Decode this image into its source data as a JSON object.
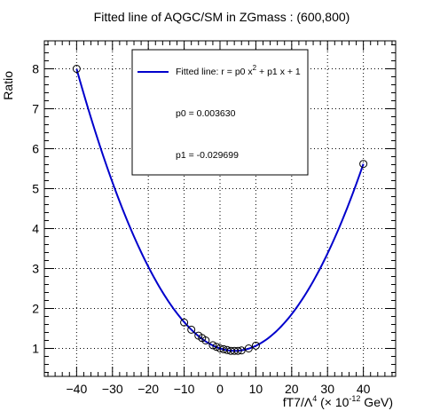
{
  "chart_data": {
    "type": "scatter",
    "title": "Fitted line of AQGC/SM in ZGmass : (600,800)",
    "xlabel": {
      "base": "fT7/Λ",
      "exp": "4",
      "mid": " (× 10",
      "mid_exp": "-12",
      "tail": " GeV)"
    },
    "ylabel": "Ratio",
    "xlim": [
      -49,
      49
    ],
    "ylim": [
      0.3,
      8.7
    ],
    "xticks": [
      -40,
      -30,
      -20,
      -10,
      0,
      10,
      20,
      30,
      40
    ],
    "yticks": [
      1,
      2,
      3,
      4,
      5,
      6,
      7,
      8
    ],
    "grid": true,
    "fit": {
      "p0": 0.00363,
      "p1": -0.029699,
      "const": 1,
      "range": [
        -40,
        40
      ],
      "color": "#0000cc"
    },
    "points": {
      "x": [
        -40,
        -10,
        -8,
        -6,
        -5,
        -4,
        -2,
        -1,
        0,
        1,
        2,
        3,
        4,
        5,
        6,
        8,
        10,
        40
      ],
      "y": [
        8.0,
        1.65,
        1.47,
        1.32,
        1.26,
        1.2,
        1.08,
        1.04,
        1.0,
        0.98,
        0.96,
        0.94,
        0.94,
        0.94,
        0.95,
        1.0,
        1.07,
        5.62
      ]
    },
    "legend": {
      "placement": "top-center",
      "entry_label": {
        "text": "Fitted line: r =  p0 x",
        "exp": "2",
        "tail": " + p1 x + 1"
      },
      "p0_text": "p0 = 0.003630",
      "p1_text": "p1 = -0.029699"
    }
  }
}
